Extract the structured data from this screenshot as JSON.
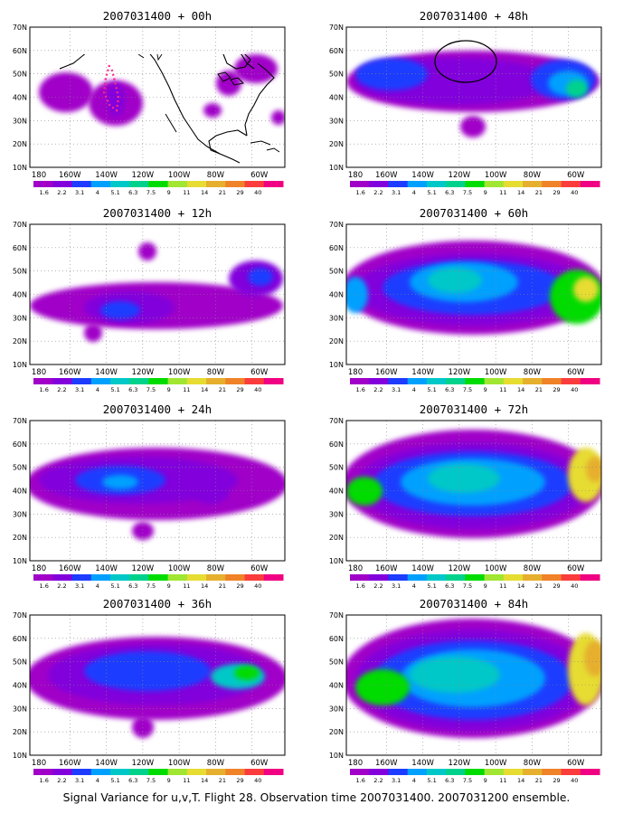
{
  "caption": "Signal Variance for u,v,T. Flight 28. Observation time 2007031400. 2007031200 ensemble.",
  "lon_labels": [
    "180",
    "160W",
    "140W",
    "120W",
    "100W",
    "80W",
    "60W"
  ],
  "lat_labels": [
    "10N",
    "20N",
    "30N",
    "40N",
    "50N",
    "60N",
    "70N"
  ],
  "colorbar": {
    "labels": [
      "1.6",
      "2.2",
      "3.1",
      "4",
      "5.1",
      "6.3",
      "7.5",
      "9",
      "11",
      "14",
      "21",
      "29",
      "40"
    ],
    "colors": [
      "#a000c8",
      "#8200dc",
      "#1e3cff",
      "#00a0ff",
      "#00c8c8",
      "#00d28c",
      "#00dc00",
      "#a0e632",
      "#e6dc32",
      "#e6af2d",
      "#f08228",
      "#fa3c3c",
      "#f00082"
    ]
  },
  "map_background": "#ffffff",
  "coastline_color": "#000000",
  "panels": [
    {
      "title": "2007031400 + 00h"
    },
    {
      "title": "2007031400 + 48h"
    },
    {
      "title": "2007031400 + 12h"
    },
    {
      "title": "2007031400 + 60h"
    },
    {
      "title": "2007031400 + 24h"
    },
    {
      "title": "2007031400 + 72h"
    },
    {
      "title": "2007031400 + 36h"
    },
    {
      "title": "2007031400 + 84h"
    }
  ]
}
